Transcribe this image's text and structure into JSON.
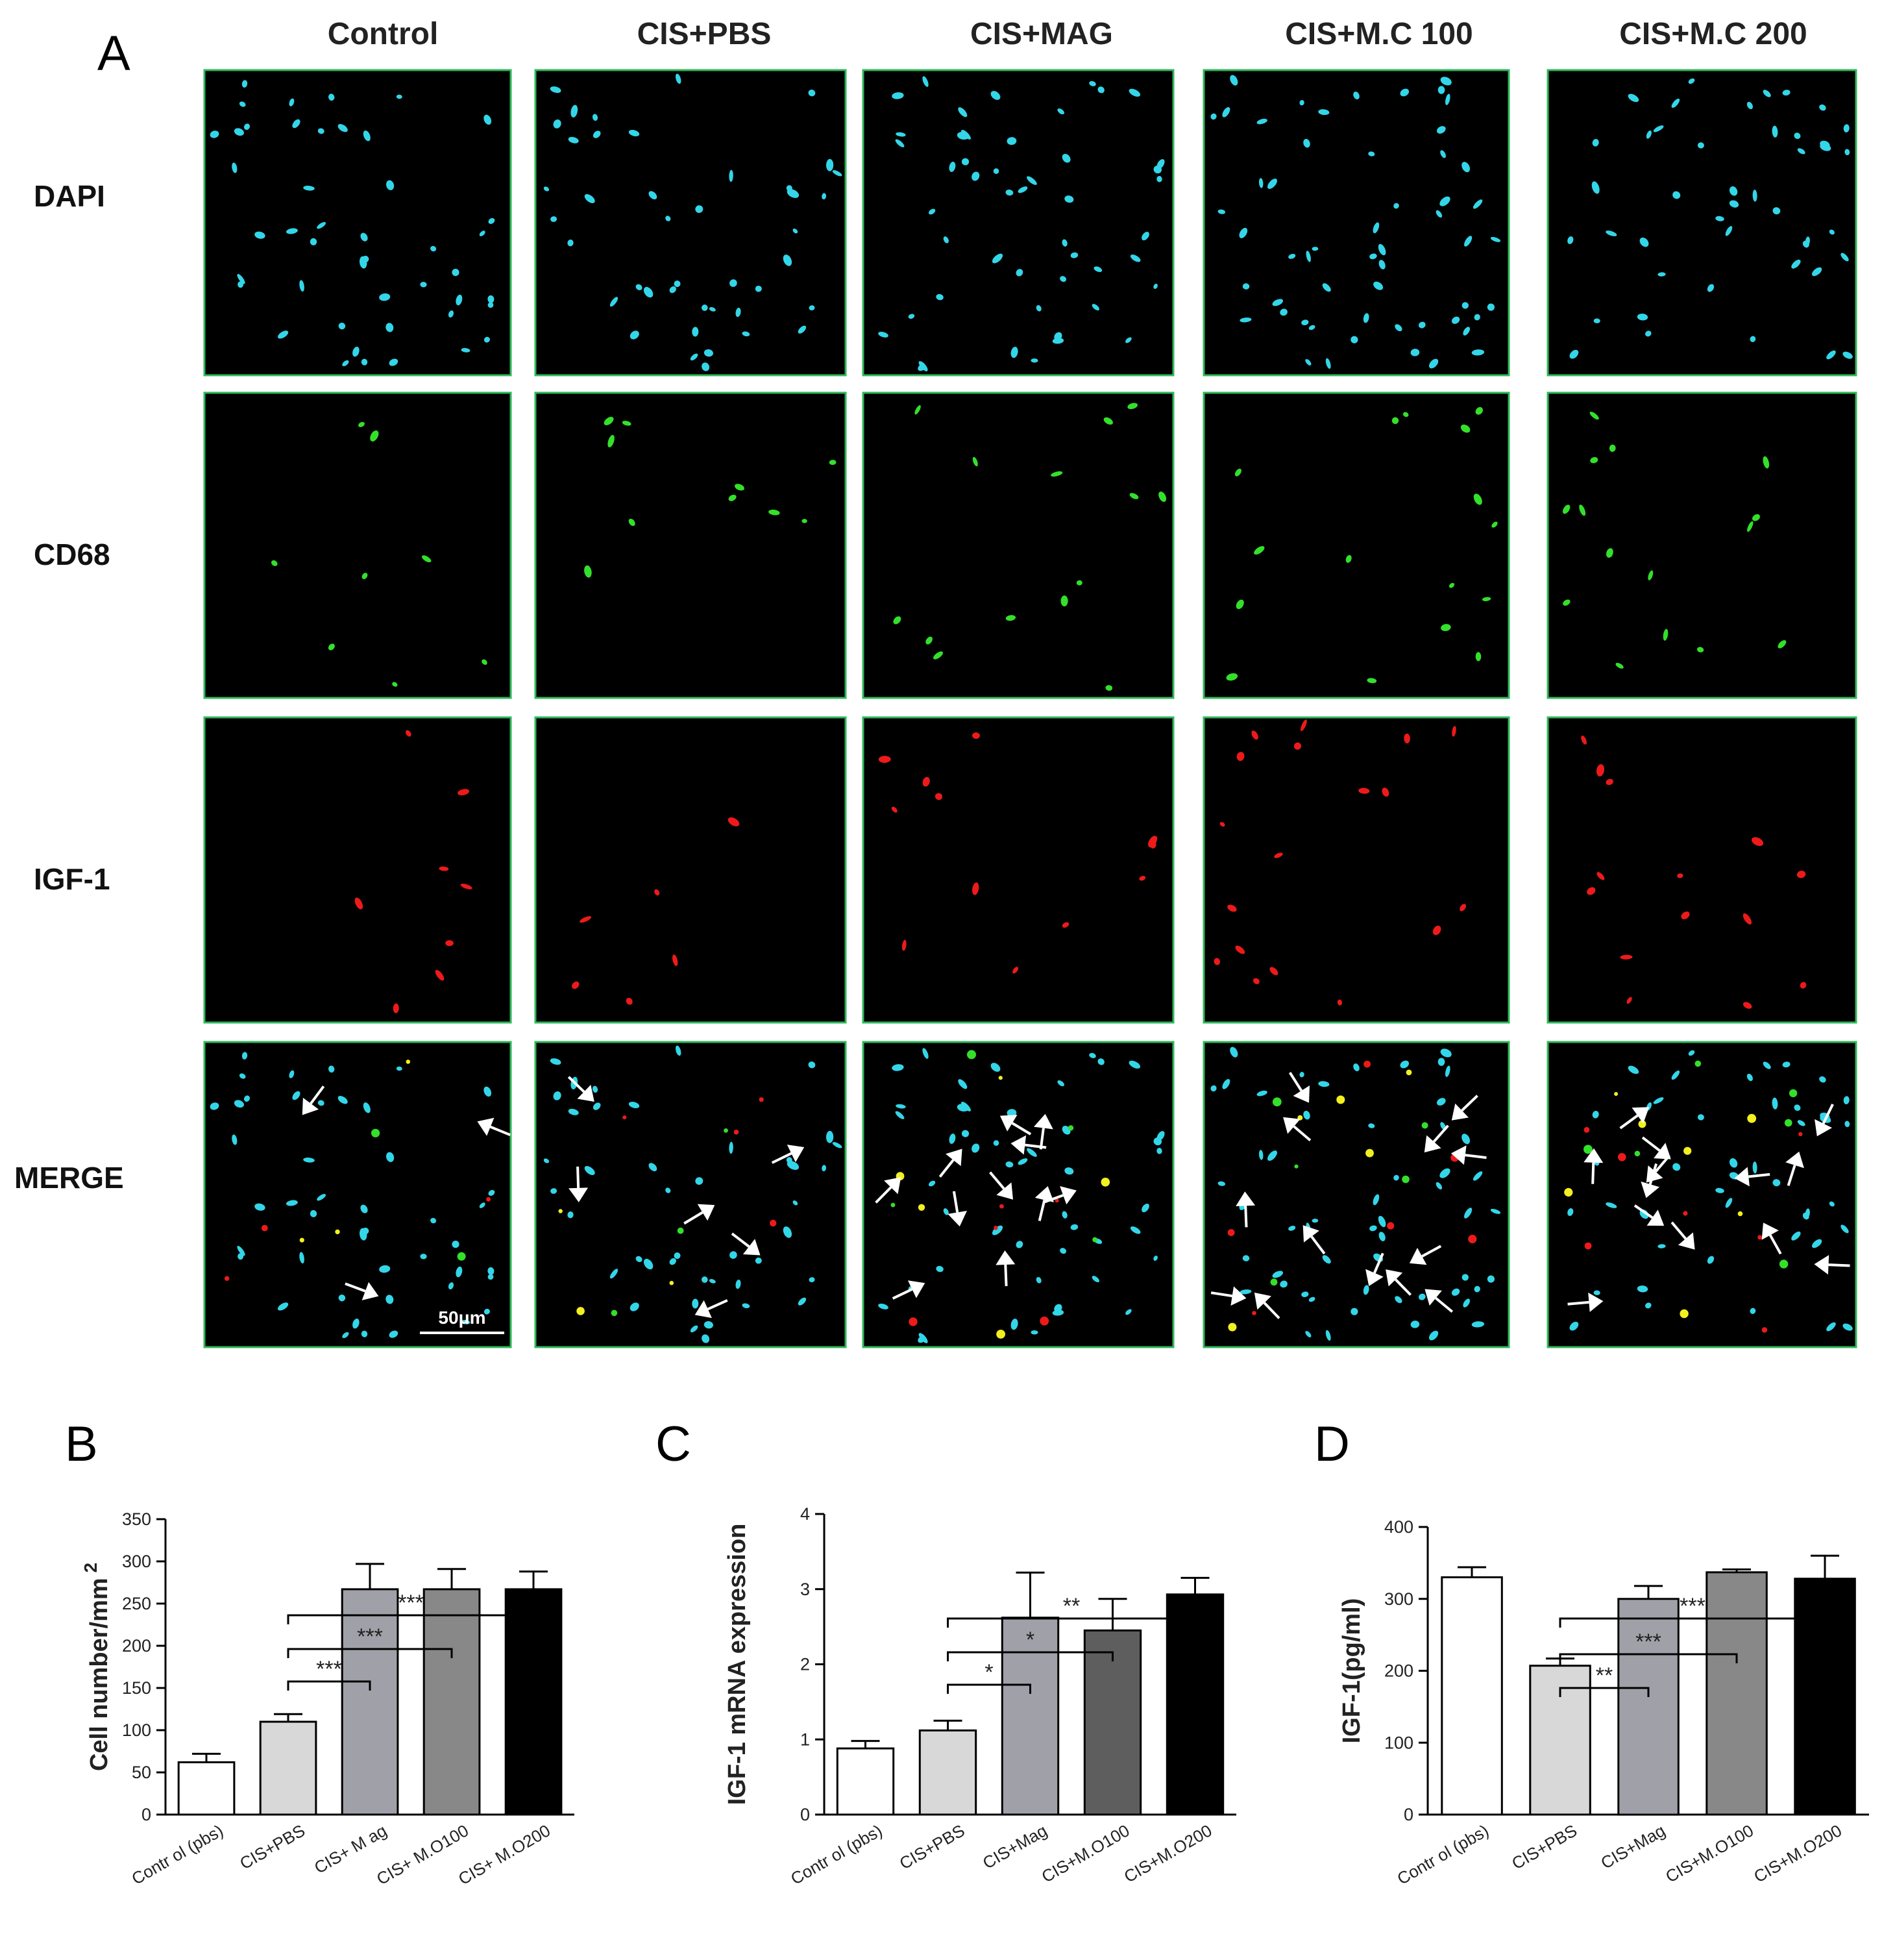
{
  "panel_a": {
    "letter": "A",
    "columns": [
      "Control",
      "CIS+PBS",
      "CIS+MAG",
      "CIS+M.C 100",
      "CIS+M.C 200"
    ],
    "rows": [
      "DAPI",
      "CD68",
      "IGF-1",
      "MERGE"
    ],
    "scale_bar": "50μm",
    "colors": {
      "DAPI": "#33d6e8",
      "CD68": "#33e02a",
      "IGF-1": "#ee1a1a",
      "coloc": "#f2f020",
      "arrow": "#ffffff",
      "frame": "#2fb85a"
    }
  },
  "chart_data": [
    {
      "id": "B",
      "type": "bar",
      "letter": "B",
      "categories": [
        "Contr ol (pbs)",
        "CIS+PBS",
        "CIS+ M ag",
        "CIS+ M.O100",
        "CIS+ M.O200"
      ],
      "values": [
        62,
        110,
        267,
        267,
        267
      ],
      "errors": [
        10,
        9,
        30,
        24,
        21
      ],
      "bar_colors": [
        "#ffffff",
        "#d8d8d8",
        "#a0a0a8",
        "#888888",
        "#000000"
      ],
      "ylabel": "Cell number/mm",
      "ylabel_superscript": "2",
      "ylim": [
        0,
        350
      ],
      "yticks": [
        0,
        50,
        100,
        150,
        200,
        250,
        300,
        350
      ],
      "significance": [
        {
          "from": 1,
          "to": 2,
          "label": "***"
        },
        {
          "from": 1,
          "to": 3,
          "label": "***"
        },
        {
          "from": 1,
          "to": 4,
          "label": "***"
        }
      ]
    },
    {
      "id": "C",
      "type": "bar",
      "letter": "C",
      "categories": [
        "Contr ol (pbs)",
        "CIS+PBS",
        "CIS+Mag",
        "CIS+M.O100",
        "CIS+M.O200"
      ],
      "values": [
        0.88,
        1.12,
        2.62,
        2.45,
        2.93
      ],
      "errors": [
        0.1,
        0.13,
        0.6,
        0.42,
        0.22
      ],
      "bar_colors": [
        "#ffffff",
        "#d8d8d8",
        "#a0a0a8",
        "#5e5e5e",
        "#000000"
      ],
      "ylabel": "IGF-1 mRNA expression",
      "ylim": [
        0,
        4
      ],
      "yticks": [
        0,
        1,
        2,
        3,
        4
      ],
      "significance": [
        {
          "from": 1,
          "to": 2,
          "label": "*"
        },
        {
          "from": 1,
          "to": 3,
          "label": "*"
        },
        {
          "from": 1,
          "to": 4,
          "label": "**"
        }
      ]
    },
    {
      "id": "D",
      "type": "bar",
      "letter": "D",
      "categories": [
        "Contr ol (pbs)",
        "CIS+PBS",
        "CIS+Mag",
        "CIS+M.O100",
        "CIS+M.O200"
      ],
      "values": [
        330,
        207,
        300,
        337,
        328
      ],
      "errors": [
        14,
        10,
        18,
        4,
        32
      ],
      "bar_colors": [
        "#ffffff",
        "#d8d8d8",
        "#a0a0a8",
        "#888888",
        "#000000"
      ],
      "ylabel": "IGF-1(pg/ml)",
      "ylim": [
        0,
        400
      ],
      "yticks": [
        0,
        100,
        200,
        300,
        400
      ],
      "significance": [
        {
          "from": 1,
          "to": 2,
          "label": "**"
        },
        {
          "from": 1,
          "to": 3,
          "label": "***"
        },
        {
          "from": 1,
          "to": 4,
          "label": "***"
        }
      ]
    }
  ]
}
